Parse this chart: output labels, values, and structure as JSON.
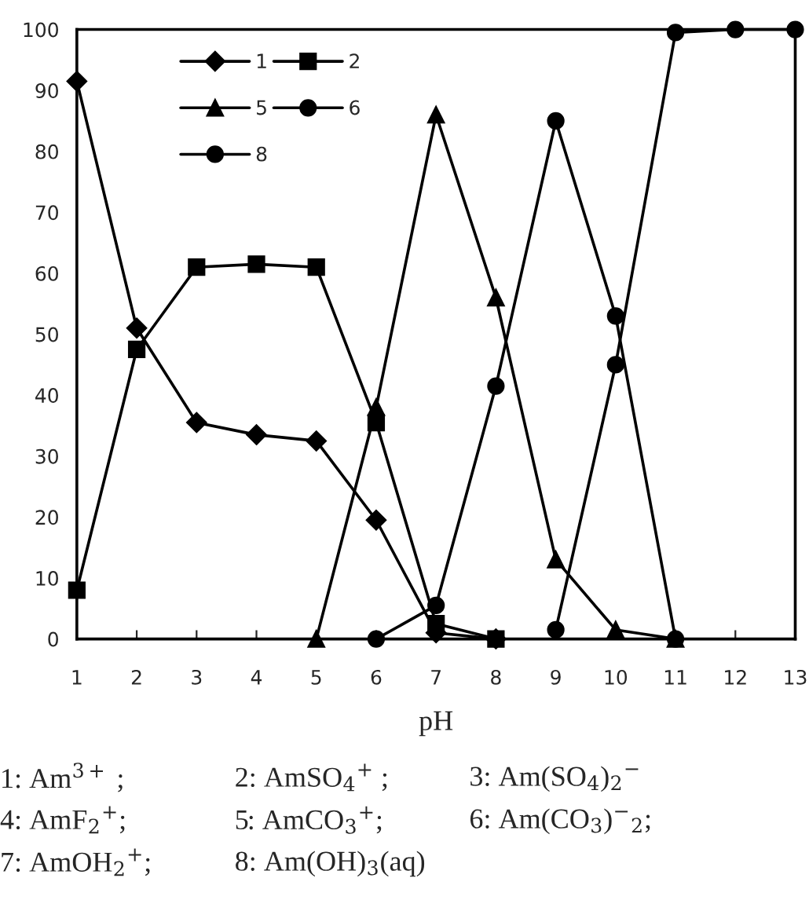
{
  "chart_data": {
    "type": "line",
    "xlabel": "pH",
    "x": [
      1,
      2,
      3,
      4,
      5,
      6,
      7,
      8,
      9,
      10,
      11,
      12,
      13
    ],
    "xlim": [
      1,
      13
    ],
    "xticks": [
      1,
      2,
      3,
      4,
      5,
      6,
      7,
      8,
      9,
      10,
      11,
      12,
      13
    ],
    "ylim": [
      0,
      100
    ],
    "yticks": [
      0,
      10,
      20,
      30,
      40,
      50,
      60,
      70,
      80,
      90,
      100
    ],
    "grid": false,
    "legend": "top left",
    "line_style": "solid",
    "series": [
      {
        "name": "1",
        "color": "#000000",
        "marker": "diamond",
        "values": [
          91.5,
          51,
          35.5,
          33.5,
          32.5,
          19.5,
          1,
          0,
          null,
          null,
          null,
          null,
          null
        ]
      },
      {
        "name": "2",
        "color": "#000000",
        "marker": "square",
        "values": [
          8,
          47.5,
          61,
          61.5,
          61,
          35.5,
          2.5,
          0,
          null,
          null,
          null,
          null,
          null
        ]
      },
      {
        "name": "5",
        "color": "#000000",
        "marker": "triangle",
        "values": [
          null,
          null,
          null,
          null,
          0,
          38,
          86,
          56,
          13,
          1.5,
          0,
          null,
          null
        ]
      },
      {
        "name": "6",
        "color": "#000000",
        "marker": "circle",
        "values": [
          null,
          null,
          null,
          null,
          null,
          0,
          5.5,
          41.5,
          85,
          53,
          0,
          null,
          null
        ]
      },
      {
        "name": "8",
        "color": "#000000",
        "marker": "circle",
        "values": [
          null,
          null,
          null,
          null,
          null,
          null,
          null,
          null,
          1.5,
          45,
          99.5,
          100,
          100
        ]
      }
    ],
    "annotations": [
      "1: Am$^{3+}$ ;",
      "2: AmSO$_{4}$$^{+}$ ;",
      "3: Am(SO$_{4}$)$_{2}$$^{−}$",
      "4: AmF$_{2}$$^{+}$;",
      "5: AmCO$_{3}$$^{+}$;",
      "6: Am(CO$_{3}$)$^{−}$$_{2}$;",
      "7: AmOH$_{2}$$^{+}$;",
      "8: Am(OH)$_{3}$(aq)"
    ]
  }
}
